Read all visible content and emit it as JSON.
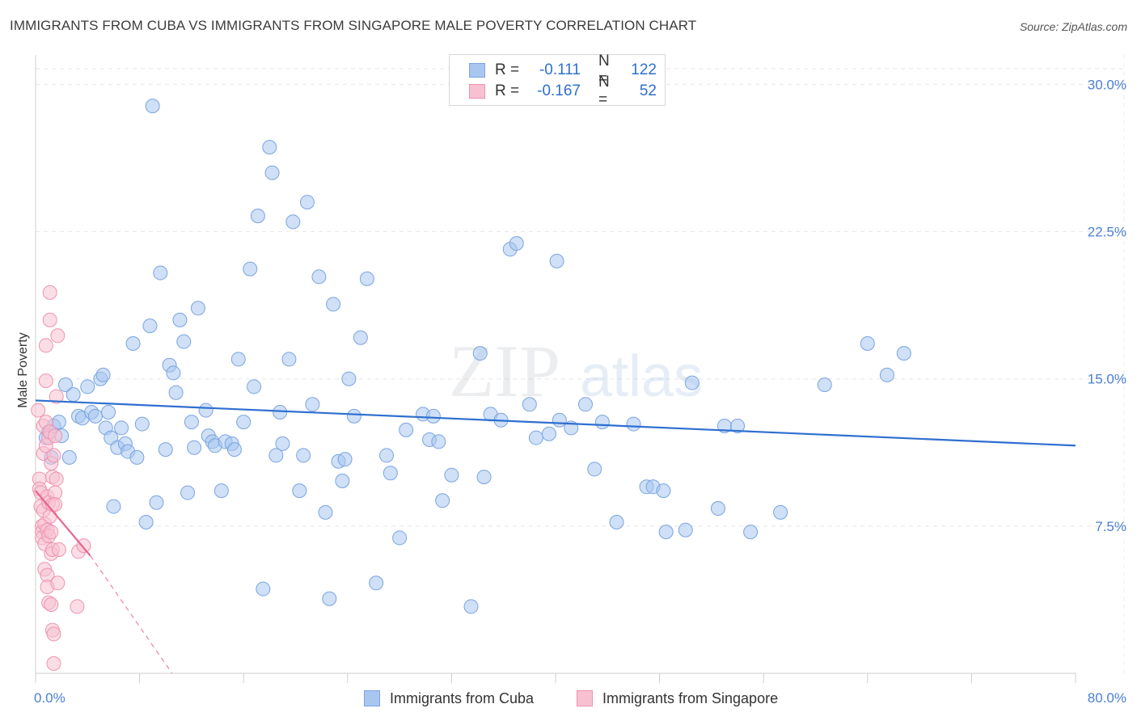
{
  "title": "IMMIGRANTS FROM CUBA VS IMMIGRANTS FROM SINGAPORE MALE POVERTY CORRELATION CHART",
  "source": "Source: ZipAtlas.com",
  "watermark": {
    "zip": "ZIP",
    "atlas": "atlas"
  },
  "legend": {
    "rows": [
      {
        "r_label": "R =",
        "r_value": "-0.111",
        "n_label": "N =",
        "n_value": "122",
        "color": "#a8c6f0",
        "border": "#7aa4e0"
      },
      {
        "r_label": "R =",
        "r_value": "-0.167",
        "n_label": "N =",
        "n_value": "52",
        "color": "#f8c1d2",
        "border": "#ee93b0"
      }
    ]
  },
  "bottom_legend": {
    "cuba": "Immigrants from Cuba",
    "singapore": "Immigrants from Singapore"
  },
  "chart_data": {
    "type": "scatter",
    "xlabel": "",
    "ylabel": "Male Poverty",
    "xlim": [
      0,
      80
    ],
    "ylim": [
      0,
      31.5
    ],
    "x_tick_labels": [
      "0.0%",
      "80.0%"
    ],
    "y_ticks": [
      7.5,
      15.0,
      22.5,
      30.0
    ],
    "y_tick_labels": [
      "7.5%",
      "15.0%",
      "22.5%",
      "30.0%"
    ],
    "grid": true,
    "series": [
      {
        "name": "Immigrants from Cuba",
        "color": "#a8c6f0",
        "edge": "#7aa4e0",
        "trend": {
          "x": [
            0,
            80
          ],
          "y": [
            13.9,
            11.6
          ],
          "color": "#2f6fd0"
        },
        "points": [
          [
            1.0,
            12.3
          ],
          [
            1.2,
            11.0
          ],
          [
            0.8,
            12.0
          ],
          [
            1.4,
            12.6
          ],
          [
            1.8,
            12.8
          ],
          [
            2.3,
            14.7
          ],
          [
            2.6,
            11.0
          ],
          [
            2.9,
            14.2
          ],
          [
            3.3,
            13.1
          ],
          [
            3.6,
            13.0
          ],
          [
            4.0,
            14.6
          ],
          [
            4.3,
            13.3
          ],
          [
            4.6,
            13.1
          ],
          [
            5.0,
            15.0
          ],
          [
            5.2,
            15.2
          ],
          [
            5.4,
            12.5
          ],
          [
            5.6,
            13.3
          ],
          [
            5.8,
            12.0
          ],
          [
            6.0,
            8.5
          ],
          [
            6.3,
            11.5
          ],
          [
            6.6,
            12.5
          ],
          [
            6.9,
            11.7
          ],
          [
            7.1,
            11.3
          ],
          [
            7.5,
            16.8
          ],
          [
            7.8,
            11.0
          ],
          [
            8.2,
            12.7
          ],
          [
            8.5,
            7.7
          ],
          [
            8.8,
            17.7
          ],
          [
            9.0,
            28.9
          ],
          [
            9.3,
            8.7
          ],
          [
            9.6,
            20.4
          ],
          [
            10.0,
            11.4
          ],
          [
            10.3,
            15.7
          ],
          [
            10.6,
            15.3
          ],
          [
            10.8,
            14.3
          ],
          [
            11.1,
            18.0
          ],
          [
            11.4,
            16.9
          ],
          [
            11.7,
            9.2
          ],
          [
            12.0,
            12.8
          ],
          [
            12.2,
            11.5
          ],
          [
            12.5,
            18.6
          ],
          [
            13.1,
            13.4
          ],
          [
            13.3,
            12.1
          ],
          [
            13.6,
            11.8
          ],
          [
            13.8,
            11.6
          ],
          [
            14.3,
            9.3
          ],
          [
            14.6,
            11.8
          ],
          [
            15.1,
            11.7
          ],
          [
            15.3,
            11.4
          ],
          [
            15.6,
            16.0
          ],
          [
            16.0,
            12.8
          ],
          [
            16.5,
            20.6
          ],
          [
            16.8,
            14.6
          ],
          [
            17.1,
            23.3
          ],
          [
            17.5,
            4.3
          ],
          [
            18.0,
            26.8
          ],
          [
            18.2,
            25.5
          ],
          [
            18.5,
            11.1
          ],
          [
            18.8,
            13.3
          ],
          [
            19.0,
            11.7
          ],
          [
            19.5,
            16.0
          ],
          [
            19.8,
            23.0
          ],
          [
            20.3,
            9.3
          ],
          [
            20.6,
            11.1
          ],
          [
            20.9,
            24.0
          ],
          [
            21.3,
            13.7
          ],
          [
            21.8,
            20.2
          ],
          [
            22.3,
            8.2
          ],
          [
            22.6,
            3.8
          ],
          [
            22.9,
            18.8
          ],
          [
            23.3,
            10.8
          ],
          [
            23.6,
            9.8
          ],
          [
            23.8,
            10.9
          ],
          [
            24.1,
            15.0
          ],
          [
            24.5,
            13.1
          ],
          [
            25.0,
            17.1
          ],
          [
            25.5,
            20.1
          ],
          [
            26.2,
            4.6
          ],
          [
            27.0,
            11.1
          ],
          [
            27.3,
            10.2
          ],
          [
            28.0,
            6.9
          ],
          [
            28.5,
            12.4
          ],
          [
            29.8,
            13.2
          ],
          [
            30.3,
            11.9
          ],
          [
            30.6,
            13.1
          ],
          [
            31.0,
            11.8
          ],
          [
            31.3,
            8.8
          ],
          [
            32.0,
            10.1
          ],
          [
            33.5,
            3.4
          ],
          [
            34.2,
            16.3
          ],
          [
            34.5,
            10.0
          ],
          [
            35.0,
            13.2
          ],
          [
            35.8,
            12.9
          ],
          [
            36.5,
            21.6
          ],
          [
            37.0,
            21.9
          ],
          [
            38.0,
            13.7
          ],
          [
            38.5,
            12.0
          ],
          [
            39.5,
            12.2
          ],
          [
            40.1,
            21.0
          ],
          [
            40.3,
            12.9
          ],
          [
            41.2,
            12.5
          ],
          [
            42.3,
            13.7
          ],
          [
            43.0,
            10.4
          ],
          [
            43.6,
            12.8
          ],
          [
            44.7,
            7.7
          ],
          [
            46.0,
            12.7
          ],
          [
            47.0,
            9.5
          ],
          [
            47.5,
            9.5
          ],
          [
            48.3,
            9.3
          ],
          [
            48.5,
            7.2
          ],
          [
            50.0,
            7.3
          ],
          [
            50.5,
            14.8
          ],
          [
            52.5,
            8.4
          ],
          [
            53.0,
            12.6
          ],
          [
            54.0,
            12.6
          ],
          [
            55.0,
            7.2
          ],
          [
            57.3,
            8.2
          ],
          [
            60.7,
            14.7
          ],
          [
            64.0,
            16.8
          ],
          [
            65.5,
            15.2
          ],
          [
            66.8,
            16.3
          ],
          [
            2.0,
            12.1
          ]
        ]
      },
      {
        "name": "Immigrants from Singapore",
        "color": "#f8c1d2",
        "edge": "#ee93b0",
        "trend": {
          "x": [
            0,
            4.2
          ],
          "y": [
            9.3,
            6.0
          ],
          "color": "#e8648f",
          "dashed_to": [
            10.5,
            0.0
          ]
        },
        "points": [
          [
            0.2,
            13.4
          ],
          [
            0.3,
            9.9
          ],
          [
            0.3,
            9.4
          ],
          [
            0.4,
            9.2
          ],
          [
            0.4,
            8.5
          ],
          [
            0.5,
            7.5
          ],
          [
            0.5,
            7.2
          ],
          [
            0.5,
            6.9
          ],
          [
            0.6,
            12.6
          ],
          [
            0.6,
            11.2
          ],
          [
            0.6,
            8.3
          ],
          [
            0.7,
            7.6
          ],
          [
            0.7,
            6.6
          ],
          [
            0.7,
            5.3
          ],
          [
            0.8,
            16.7
          ],
          [
            0.8,
            14.9
          ],
          [
            0.8,
            12.8
          ],
          [
            0.8,
            11.6
          ],
          [
            0.9,
            9.0
          ],
          [
            0.9,
            7.3
          ],
          [
            0.9,
            5.0
          ],
          [
            0.9,
            4.4
          ],
          [
            1.0,
            12.0
          ],
          [
            1.0,
            8.7
          ],
          [
            1.0,
            7.0
          ],
          [
            1.0,
            3.6
          ],
          [
            1.1,
            19.4
          ],
          [
            1.1,
            18.0
          ],
          [
            1.1,
            12.3
          ],
          [
            1.1,
            8.0
          ],
          [
            1.2,
            10.7
          ],
          [
            1.2,
            7.2
          ],
          [
            1.2,
            6.1
          ],
          [
            1.2,
            3.5
          ],
          [
            1.3,
            10.0
          ],
          [
            1.3,
            8.6
          ],
          [
            1.3,
            6.3
          ],
          [
            1.3,
            2.2
          ],
          [
            1.4,
            11.1
          ],
          [
            1.4,
            2.0
          ],
          [
            1.4,
            0.5
          ],
          [
            1.5,
            12.1
          ],
          [
            1.5,
            9.2
          ],
          [
            1.5,
            8.6
          ],
          [
            1.6,
            14.1
          ],
          [
            1.6,
            9.9
          ],
          [
            1.7,
            17.2
          ],
          [
            1.7,
            4.6
          ],
          [
            1.8,
            6.3
          ],
          [
            3.2,
            3.4
          ],
          [
            3.3,
            6.2
          ],
          [
            3.7,
            6.5
          ]
        ]
      }
    ]
  }
}
